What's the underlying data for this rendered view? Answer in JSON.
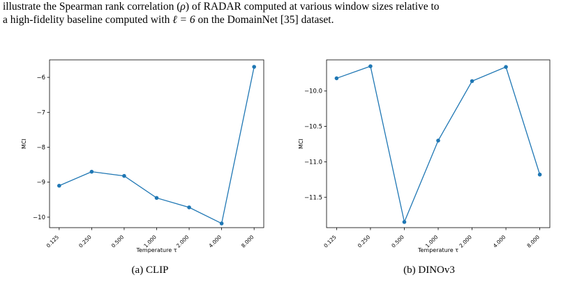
{
  "text": {
    "line1_a": "illustrate the Spearman rank correlation (",
    "line1_rho": "ρ",
    "line1_b": ") of RADAR computed at various window sizes relative to",
    "line2_a": "a high-fidelity baseline computed with ",
    "line2_ell": "ℓ = 6",
    "line2_b": " on the DomainNet [35] dataset."
  },
  "captions": {
    "a": "(a) CLIP",
    "b": "(b) DINOv3"
  },
  "chart_data": [
    {
      "type": "line",
      "title": "",
      "xlabel": "Temperature τ",
      "ylabel": "MCI",
      "x": [
        0.125,
        0.25,
        0.5,
        1.0,
        2.0,
        4.0,
        8.0
      ],
      "x_tick_labels": [
        "0.125",
        "0.250",
        "0.500",
        "1.000",
        "2.000",
        "4.000",
        "8.000"
      ],
      "y_tick_labels": [
        "−10",
        "−9",
        "−8",
        "−7",
        "−6"
      ],
      "y_ticks": [
        -10,
        -9,
        -8,
        -7,
        -6
      ],
      "ylim": [
        -10.3,
        -5.5
      ],
      "series": [
        {
          "values": [
            -9.1,
            -8.7,
            -8.82,
            -9.45,
            -9.72,
            -10.18,
            -5.7
          ]
        }
      ],
      "color": "#1f77b4",
      "grid": false
    },
    {
      "type": "line",
      "title": "",
      "xlabel": "Temperature τ",
      "ylabel": "MCI",
      "x": [
        0.125,
        0.25,
        0.5,
        1.0,
        2.0,
        4.0,
        8.0
      ],
      "x_tick_labels": [
        "0.125",
        "0.250",
        "0.500",
        "1.000",
        "2.000",
        "4.000",
        "8.000"
      ],
      "y_tick_labels": [
        "−10.0",
        "−10.5",
        "−11.0",
        "−11.5"
      ],
      "y_ticks": [
        -10.0,
        -10.5,
        -11.0,
        -11.5
      ],
      "ylim": [
        -11.93,
        -9.56
      ],
      "series": [
        {
          "values": [
            -9.82,
            -9.65,
            -11.85,
            -10.7,
            -9.86,
            -9.66,
            -11.18
          ]
        }
      ],
      "color": "#1f77b4",
      "grid": false
    }
  ]
}
